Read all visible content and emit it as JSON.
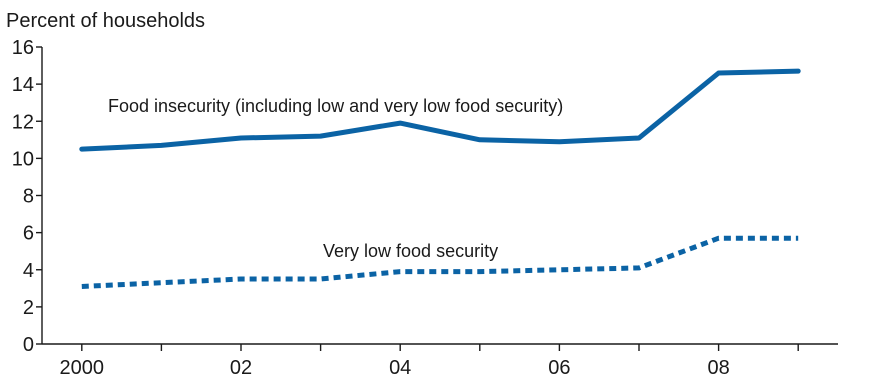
{
  "chart_data": {
    "type": "line",
    "title": "",
    "ylabel": "Percent of households",
    "xlabel": "",
    "x": [
      2000,
      2001,
      2002,
      2003,
      2004,
      2005,
      2006,
      2007,
      2008,
      2009
    ],
    "x_tick_values": [
      2000,
      2002,
      2004,
      2006,
      2008
    ],
    "x_tick_labels": [
      "2000",
      "02",
      "04",
      "06",
      "08"
    ],
    "ylim": [
      0,
      16
    ],
    "y_ticks": [
      0,
      2,
      4,
      6,
      8,
      10,
      12,
      14,
      16
    ],
    "grid": false,
    "series": [
      {
        "name": "Food insecurity (including low and very low food security)",
        "values": [
          10.5,
          10.7,
          11.1,
          11.2,
          11.9,
          11.0,
          10.9,
          11.1,
          14.6,
          14.7
        ],
        "color": "#0b63a5",
        "style": "solid"
      },
      {
        "name": "Very low food security",
        "values": [
          3.1,
          3.3,
          3.5,
          3.5,
          3.9,
          3.9,
          4.0,
          4.1,
          5.7,
          5.7
        ],
        "color": "#0b63a5",
        "style": "dotted"
      }
    ]
  }
}
